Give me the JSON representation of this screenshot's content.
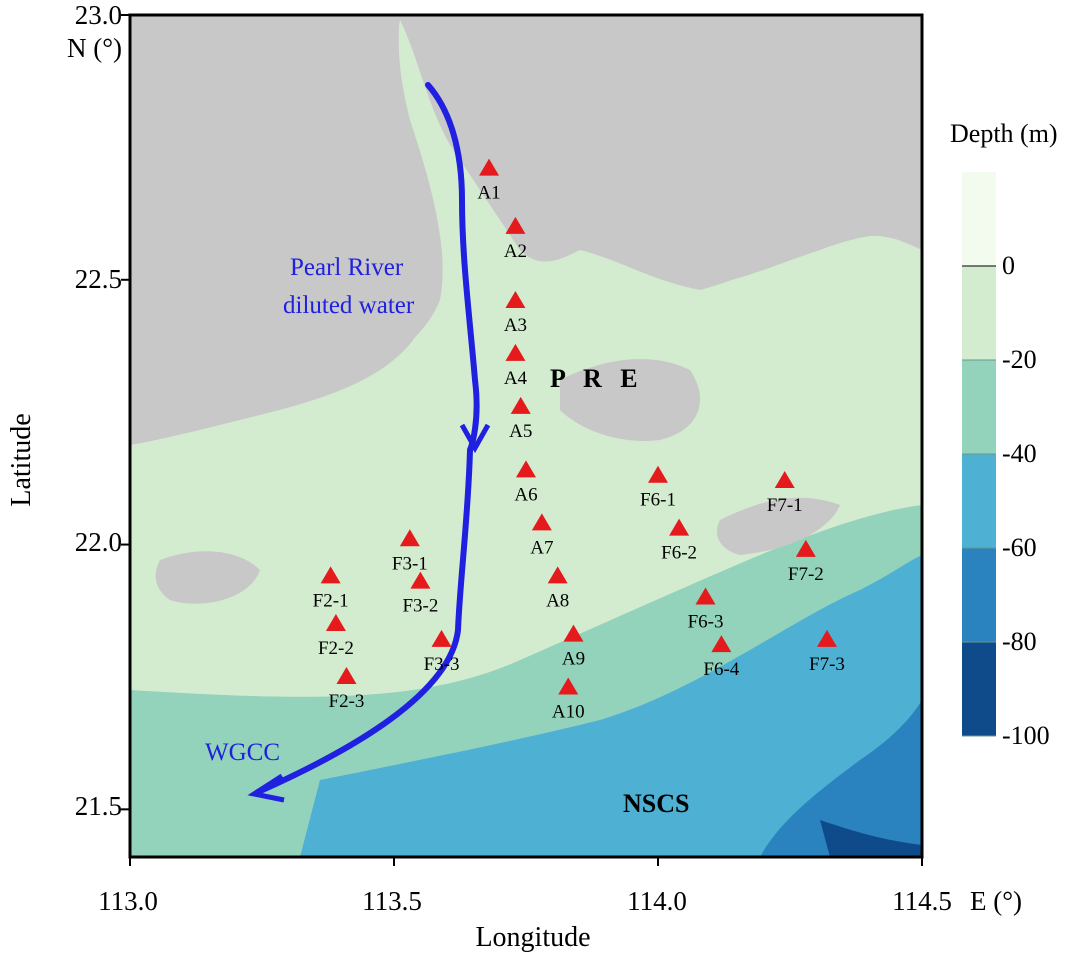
{
  "map": {
    "region_labels": {
      "pre": "P R E",
      "nscs": "NSCS"
    },
    "flow_labels": {
      "line1": "Pearl River",
      "line2": "diluted water",
      "wgcc": "WGCC"
    },
    "axis": {
      "x_title": "Longitude",
      "y_title": "Latitude",
      "x_ticks": [
        "113.0",
        "113.5",
        "114.0",
        "114.5"
      ],
      "x_unit": "E (°)",
      "y_ticks": [
        "23.0",
        "22.5",
        "22.0",
        "21.5"
      ],
      "y_unit": "N (°)"
    },
    "colorbar": {
      "title": "Depth (m)",
      "labels": [
        "0",
        "-20",
        "-40",
        "-60",
        "-80",
        "-100"
      ],
      "colors": [
        "#f3faee",
        "#d3ecd0",
        "#93d3bc",
        "#4eb0d3",
        "#2a82bf",
        "#0f4a8a"
      ]
    },
    "colors": {
      "land": "#c8c8c8",
      "arrow": "#1f20e0",
      "station": "#e41a1c"
    },
    "stations": [
      {
        "label": "A1",
        "lon": 113.68,
        "lat": 22.71
      },
      {
        "label": "A2",
        "lon": 113.73,
        "lat": 22.6
      },
      {
        "label": "A3",
        "lon": 113.73,
        "lat": 22.46
      },
      {
        "label": "A4",
        "lon": 113.73,
        "lat": 22.36
      },
      {
        "label": "A5",
        "lon": 113.74,
        "lat": 22.26
      },
      {
        "label": "A6",
        "lon": 113.75,
        "lat": 22.14
      },
      {
        "label": "A7",
        "lon": 113.78,
        "lat": 22.04
      },
      {
        "label": "A8",
        "lon": 113.81,
        "lat": 21.94
      },
      {
        "label": "A9",
        "lon": 113.84,
        "lat": 21.83
      },
      {
        "label": "A10",
        "lon": 113.83,
        "lat": 21.73
      },
      {
        "label": "F2-1",
        "lon": 113.38,
        "lat": 21.94
      },
      {
        "label": "F2-2",
        "lon": 113.39,
        "lat": 21.85
      },
      {
        "label": "F2-3",
        "lon": 113.41,
        "lat": 21.75
      },
      {
        "label": "F3-1",
        "lon": 113.53,
        "lat": 22.01
      },
      {
        "label": "F3-2",
        "lon": 113.55,
        "lat": 21.93
      },
      {
        "label": "F3-3",
        "lon": 113.59,
        "lat": 21.82
      },
      {
        "label": "F6-1",
        "lon": 114.0,
        "lat": 22.13
      },
      {
        "label": "F6-2",
        "lon": 114.04,
        "lat": 22.03
      },
      {
        "label": "F6-3",
        "lon": 114.09,
        "lat": 21.9
      },
      {
        "label": "F6-4",
        "lon": 114.12,
        "lat": 21.81
      },
      {
        "label": "F7-1",
        "lon": 114.24,
        "lat": 22.12
      },
      {
        "label": "F7-2",
        "lon": 114.28,
        "lat": 21.99
      },
      {
        "label": "F7-3",
        "lon": 114.32,
        "lat": 21.82
      }
    ]
  }
}
